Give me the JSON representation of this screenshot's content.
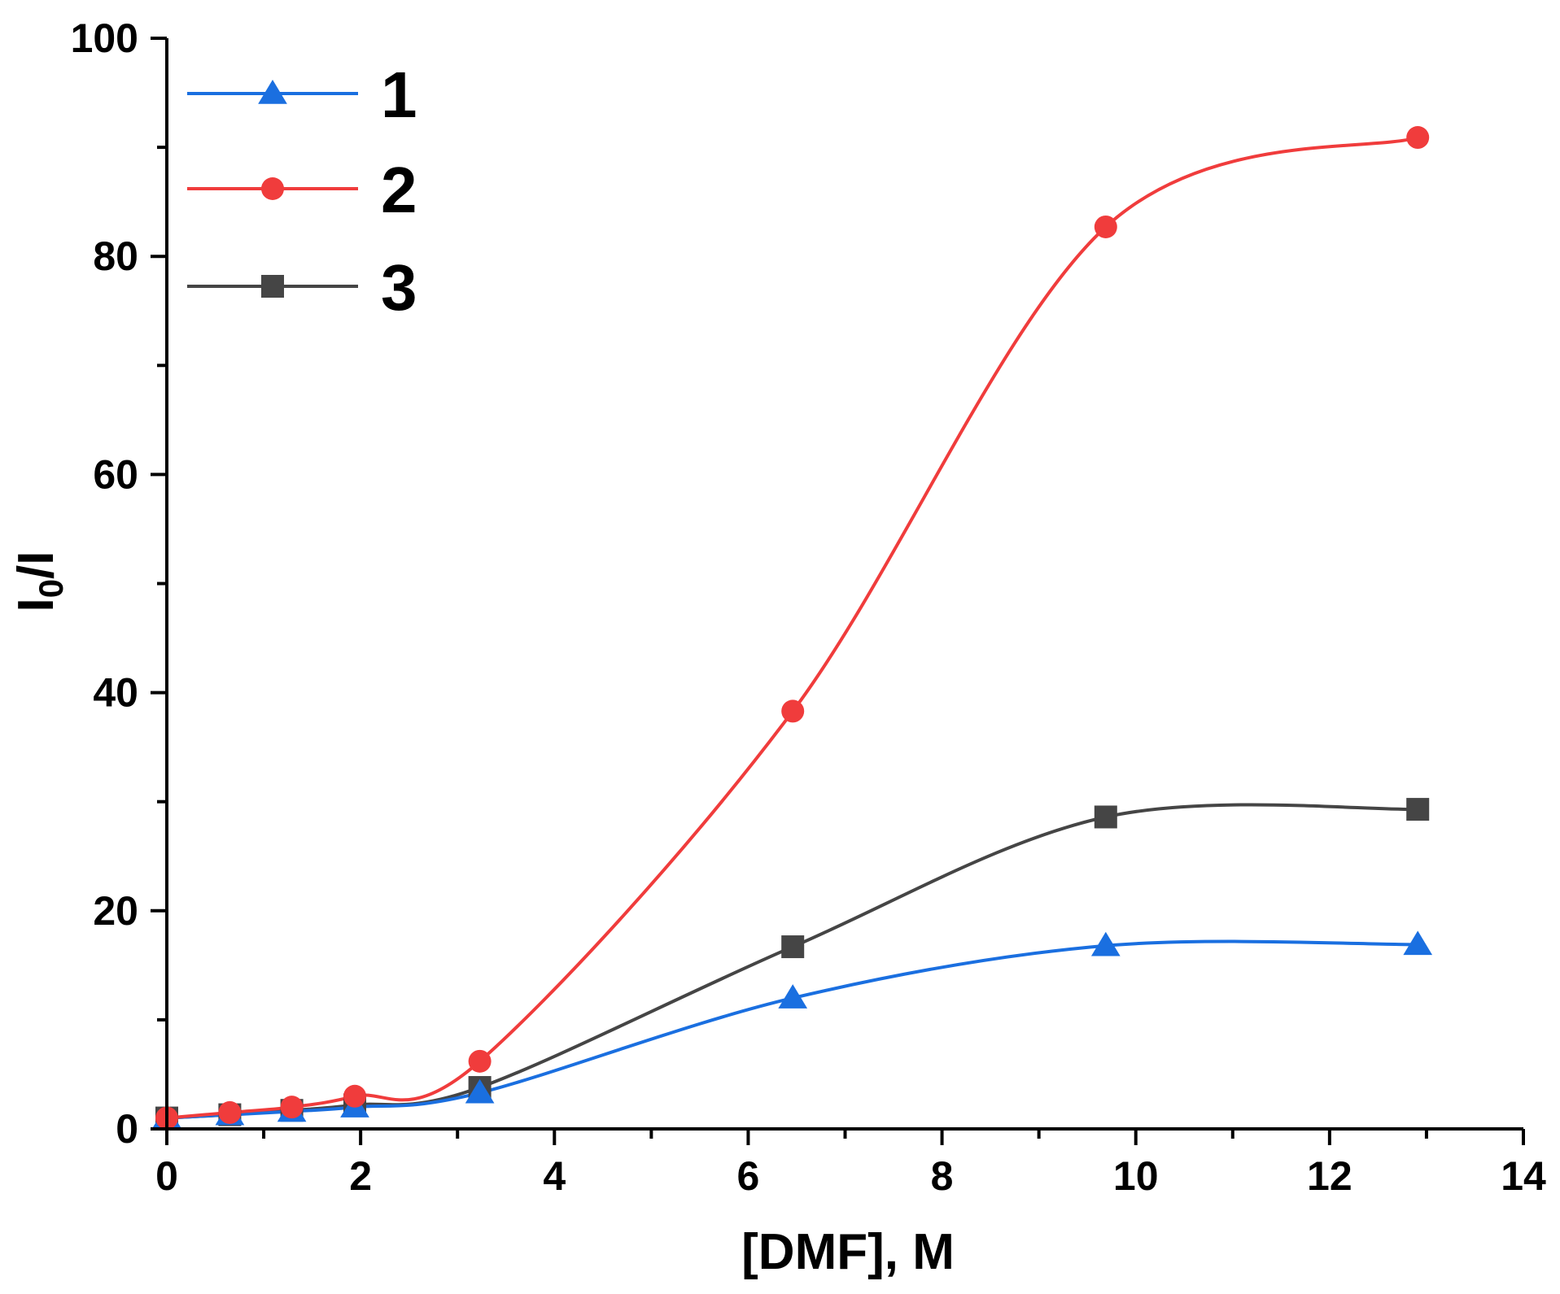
{
  "chart_data": {
    "type": "line",
    "title": "",
    "xlabel": "[DMF], M",
    "ylabel_main": "I",
    "ylabel_sub": "0",
    "ylabel_tail": "/I",
    "xlim": [
      0,
      14
    ],
    "ylim": [
      0,
      100
    ],
    "x_ticks": [
      0,
      2,
      4,
      6,
      8,
      10,
      12,
      14
    ],
    "y_ticks": [
      0,
      20,
      40,
      60,
      80,
      100
    ],
    "x_tick_labels": [
      "0",
      "2",
      "4",
      "6",
      "8",
      "10",
      "12",
      "14"
    ],
    "y_tick_labels": [
      "0",
      "20",
      "40",
      "60",
      "80",
      "100"
    ],
    "grid": false,
    "legend_position": "top-left",
    "series": [
      {
        "name": "1",
        "color": "#1a6fe0",
        "marker": "triangle",
        "x": [
          0,
          0.65,
          1.29,
          1.94,
          3.23,
          6.46,
          9.69,
          12.91
        ],
        "y": [
          1.0,
          1.3,
          1.6,
          2.0,
          3.3,
          12.0,
          16.8,
          16.9
        ]
      },
      {
        "name": "2",
        "color": "#f03c3c",
        "marker": "circle",
        "x": [
          0,
          0.65,
          1.29,
          1.94,
          3.23,
          6.46,
          9.69,
          12.91
        ],
        "y": [
          1.0,
          1.5,
          2.0,
          3.0,
          6.2,
          38.3,
          82.7,
          90.9
        ]
      },
      {
        "name": "3",
        "color": "#454545",
        "marker": "square",
        "x": [
          0,
          0.65,
          1.29,
          1.94,
          3.23,
          6.46,
          9.69,
          12.91
        ],
        "y": [
          1.0,
          1.3,
          1.7,
          2.2,
          3.8,
          16.7,
          28.6,
          29.3
        ]
      }
    ]
  }
}
